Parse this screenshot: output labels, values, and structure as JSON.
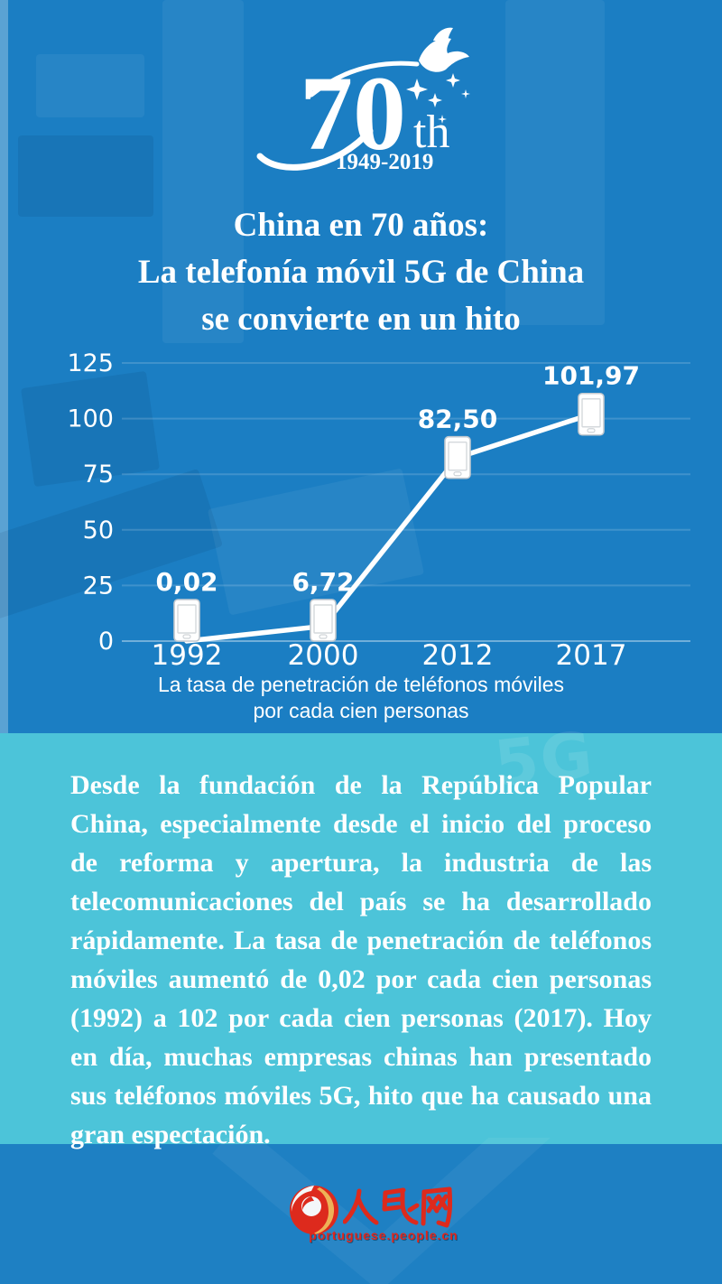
{
  "anniversary_logo": {
    "number": "70",
    "suffix": "th",
    "years": "1949-2019",
    "dove_icon": "dove",
    "sparkles_icon": "sparkle-stars"
  },
  "title": {
    "lines": [
      "China en 70 años:",
      "La telefonía móvil 5G de China",
      "se convierte en un hito"
    ]
  },
  "chart_data": {
    "type": "line",
    "x": [
      "1992",
      "2000",
      "2012",
      "2017"
    ],
    "values": [
      0.02,
      6.72,
      82.5,
      101.97
    ],
    "value_labels": [
      "0,02",
      "6,72",
      "82,50",
      "101,97"
    ],
    "y_ticks": [
      0,
      25,
      50,
      75,
      100,
      125
    ],
    "ylim": [
      0,
      125
    ],
    "grid": true,
    "legend": "none",
    "marker": "smartphone-icon",
    "line_color": "#ffffff",
    "caption_lines": [
      "La tasa de penetración de teléfonos móviles",
      "por cada cien personas"
    ]
  },
  "body": {
    "watermark": "5G",
    "paragraph": "Desde la fundación de la República Popular China, especialmente desde el inicio del proceso de reforma y apertura, la industria de las telecomunicaciones del país se ha desarrollado rápidamente. La tasa de penetración de teléfonos móviles aumentó de 0,02 por cada cien personas (1992) a 102 por cada cien personas (2017). Hoy en día, muchas empresas chinas han presentado sus teléfonos móviles 5G, hito que ha causado una gran espectación."
  },
  "footer": {
    "brand_cn": "人民网",
    "brand_url": "portuguese.people.cn"
  },
  "colors": {
    "top_bg": "#1b7ec3",
    "mid_bg": "#4cc4d9",
    "bottom_bg": "#1e80c3",
    "text": "#ffffff",
    "brand_red": "#d9251c",
    "brand_gold": "#eeb257"
  }
}
